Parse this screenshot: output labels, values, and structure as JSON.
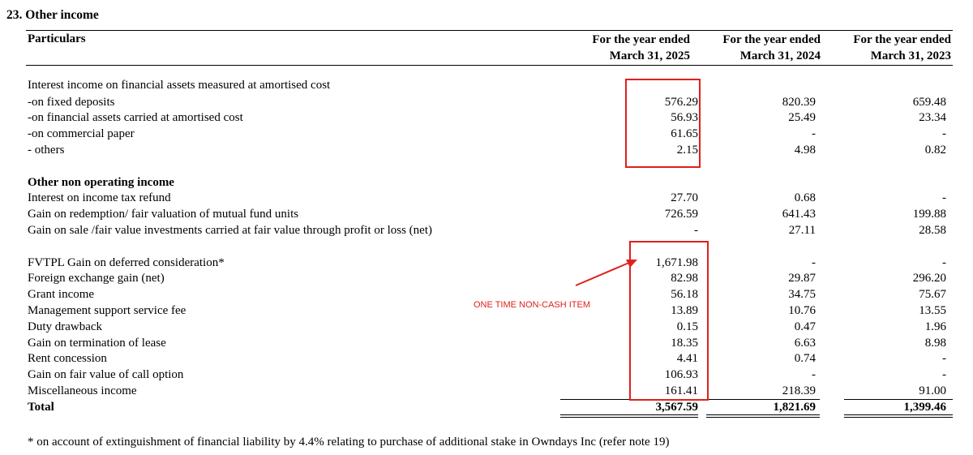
{
  "note": {
    "title": "23. Other income",
    "particulars_header": "Particulars",
    "columns": [
      {
        "line1": "For the year ended",
        "line2": "March 31, 2025"
      },
      {
        "line1": "For the year ended",
        "line2": "March 31, 2024"
      },
      {
        "line1": "For the year ended",
        "line2": "March 31, 2023"
      }
    ],
    "rows": [
      {
        "label": "Interest income on financial assets measured at amortised cost",
        "v": [
          "",
          "",
          ""
        ]
      },
      {
        "label": "-on fixed deposits",
        "v": [
          "576.29",
          "820.39",
          "659.48"
        ]
      },
      {
        "label": "-on financial assets carried at amortised cost",
        "v": [
          "56.93",
          "25.49",
          "23.34"
        ]
      },
      {
        "label": "-on commercial paper",
        "v": [
          "61.65",
          "-",
          "-"
        ]
      },
      {
        "label": "- others",
        "v": [
          "2.15",
          "4.98",
          "0.82"
        ]
      },
      {
        "label": "Other non operating income",
        "v": [
          "",
          "",
          ""
        ]
      },
      {
        "label": "Interest on income tax refund",
        "v": [
          "27.70",
          "0.68",
          "-"
        ]
      },
      {
        "label": "Gain on redemption/ fair valuation of mutual fund units",
        "v": [
          "726.59",
          "641.43",
          "199.88"
        ]
      },
      {
        "label": "Gain on sale /fair value investments carried at fair value through profit or loss (net)",
        "v": [
          "-",
          "27.11",
          "28.58"
        ]
      },
      {
        "label": "FVTPL Gain on deferred consideration*",
        "v": [
          "1,671.98",
          "-",
          "-"
        ]
      },
      {
        "label": "Foreign exchange gain (net)",
        "v": [
          "82.98",
          "29.87",
          "296.20"
        ]
      },
      {
        "label": "Grant income",
        "v": [
          "56.18",
          "34.75",
          "75.67"
        ]
      },
      {
        "label": "Management support service fee",
        "v": [
          "13.89",
          "10.76",
          "13.55"
        ]
      },
      {
        "label": "Duty drawback",
        "v": [
          "0.15",
          "0.47",
          "1.96"
        ]
      },
      {
        "label": "Gain on termination of lease",
        "v": [
          "18.35",
          "6.63",
          "8.98"
        ]
      },
      {
        "label": "Rent concession",
        "v": [
          "4.41",
          "0.74",
          "-"
        ]
      },
      {
        "label": "Gain on fair value of call option",
        "v": [
          "106.93",
          "-",
          "-"
        ]
      },
      {
        "label": "Miscellaneous income",
        "v": [
          "161.41",
          "218.39",
          "91.00"
        ]
      }
    ],
    "total": {
      "label": "Total",
      "v": [
        "3,567.59",
        "1,821.69",
        "1,399.46"
      ]
    },
    "footnote": "* on account of extinguishment of financial liability by 4.4% relating to purchase of additional stake in Owndays Inc (refer note 19)"
  },
  "annotation": {
    "text": "ONE TIME NON-CASH ITEM",
    "color": "#e0201b"
  }
}
